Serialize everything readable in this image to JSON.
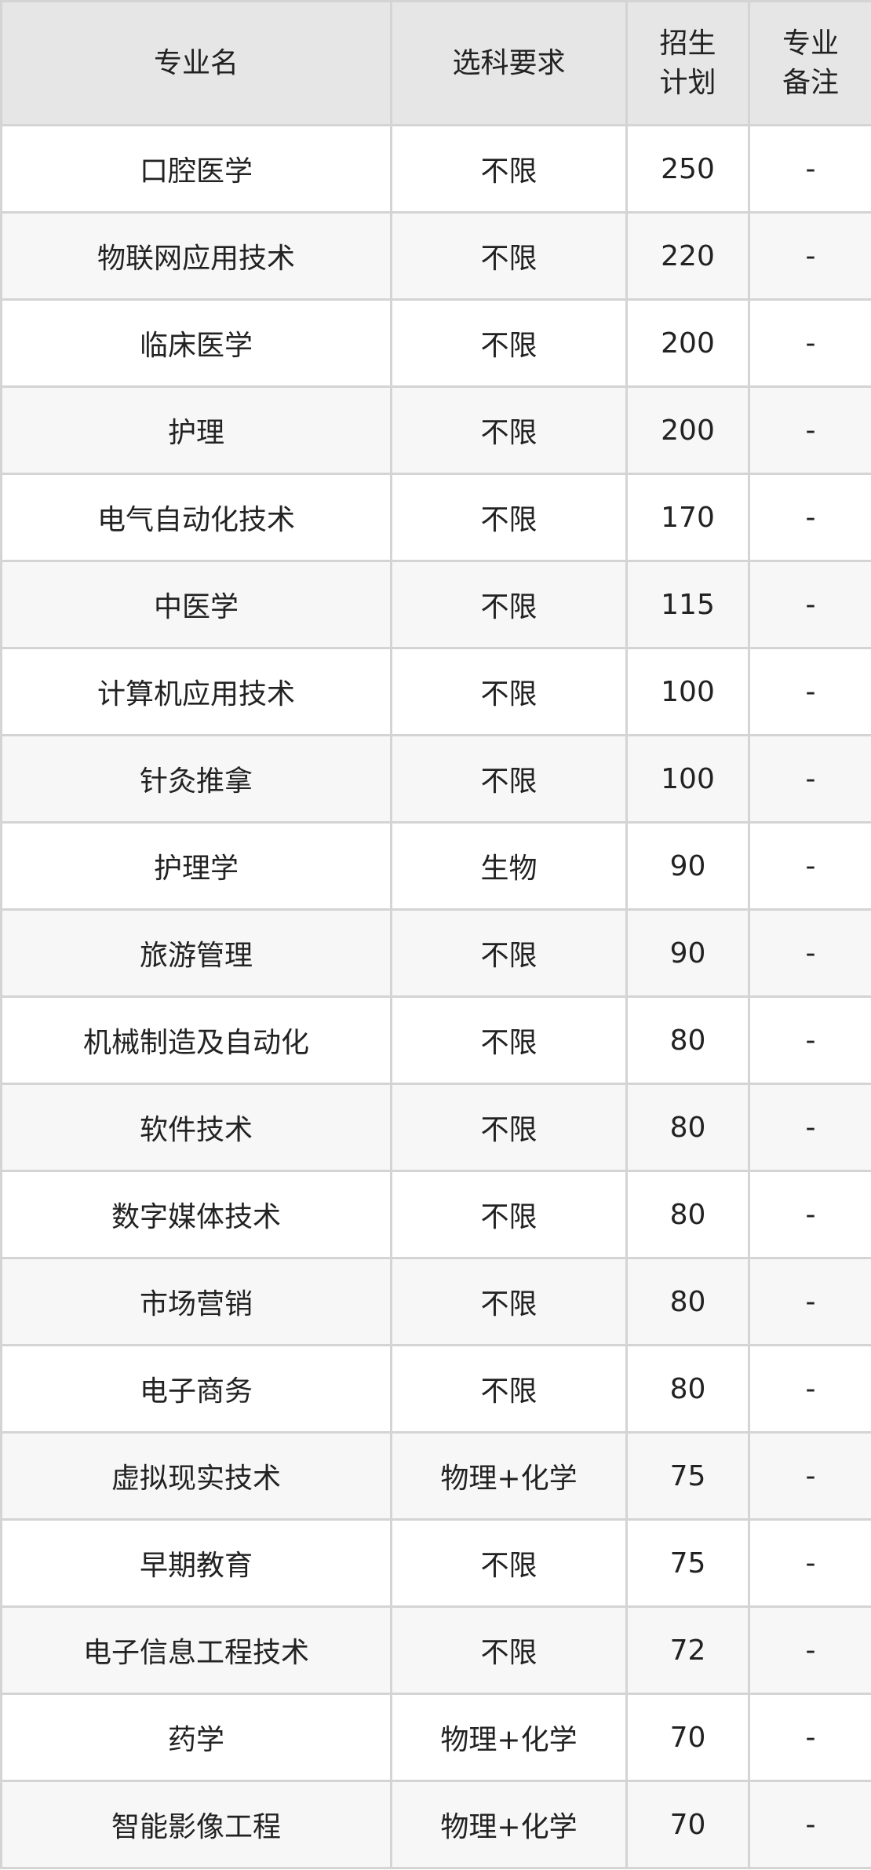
{
  "headers": [
    "专业名",
    "选科要求",
    "招生\n计划",
    "专业\n备注"
  ],
  "header_lines": [
    [
      "专业名"
    ],
    [
      "选科要求"
    ],
    [
      "招生",
      "计划"
    ],
    [
      "专业",
      "备注"
    ]
  ],
  "rows": [
    [
      "口腔医学",
      "不限",
      "250",
      "-"
    ],
    [
      "物联网应用技术",
      "不限",
      "220",
      "-"
    ],
    [
      "临床医学",
      "不限",
      "200",
      "-"
    ],
    [
      "护理",
      "不限",
      "200",
      "-"
    ],
    [
      "电气自动化技术",
      "不限",
      "170",
      "-"
    ],
    [
      "中医学",
      "不限",
      "115",
      "-"
    ],
    [
      "计算机应用技术",
      "不限",
      "100",
      "-"
    ],
    [
      "针灸推拿",
      "不限",
      "100",
      "-"
    ],
    [
      "护理学",
      "生物",
      "90",
      "-"
    ],
    [
      "旅游管理",
      "不限",
      "90",
      "-"
    ],
    [
      "机械制造及自动化",
      "不限",
      "80",
      "-"
    ],
    [
      "软件技术",
      "不限",
      "80",
      "-"
    ],
    [
      "数字媒体技术",
      "不限",
      "80",
      "-"
    ],
    [
      "市场营销",
      "不限",
      "80",
      "-"
    ],
    [
      "电子商务",
      "不限",
      "80",
      "-"
    ],
    [
      "虚拟现实技术",
      "物理+化学",
      "75",
      "-"
    ],
    [
      "早期教育",
      "不限",
      "75",
      "-"
    ],
    [
      "电子信息工程技术",
      "不限",
      "72",
      "-"
    ],
    [
      "药学",
      "物理+化学",
      "70",
      "-"
    ],
    [
      "智能影像工程",
      "物理+化学",
      "70",
      "-"
    ]
  ]
}
